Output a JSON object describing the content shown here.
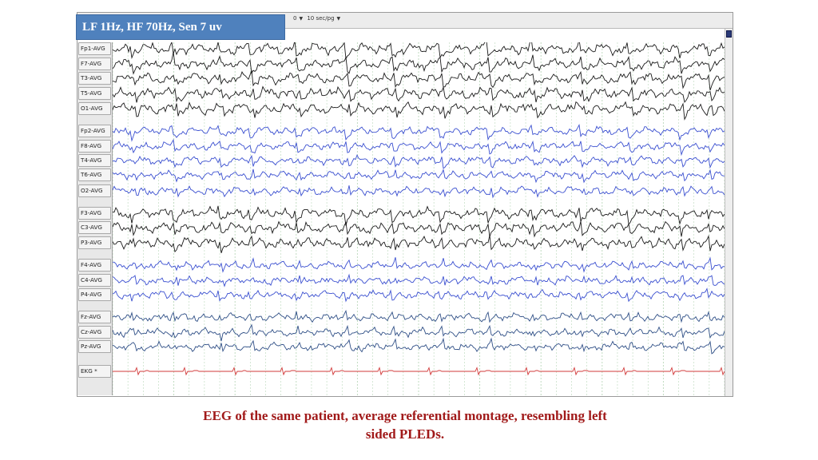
{
  "settings_badge": "LF 1Hz, HF 70Hz, Sen 7 uv",
  "toolbar": {
    "partial_value": "0",
    "timebase": "10 sec/pg"
  },
  "channels": [
    {
      "label": "Fp1-AVG",
      "group": "left"
    },
    {
      "label": "F7-AVG",
      "group": "left"
    },
    {
      "label": "T3-AVG",
      "group": "left"
    },
    {
      "label": "T5-AVG",
      "group": "left"
    },
    {
      "label": "O1-AVG",
      "group": "left"
    },
    {
      "label": "Fp2-AVG",
      "group": "right"
    },
    {
      "label": "F8-AVG",
      "group": "right"
    },
    {
      "label": "T4-AVG",
      "group": "right"
    },
    {
      "label": "T6-AVG",
      "group": "right"
    },
    {
      "label": "O2-AVG",
      "group": "right"
    },
    {
      "label": "F3-AVG",
      "group": "left"
    },
    {
      "label": "C3-AVG",
      "group": "left"
    },
    {
      "label": "P3-AVG",
      "group": "left"
    },
    {
      "label": "F4-AVG",
      "group": "right"
    },
    {
      "label": "C4-AVG",
      "group": "right"
    },
    {
      "label": "P4-AVG",
      "group": "right"
    },
    {
      "label": "Fz-AVG",
      "group": "midline"
    },
    {
      "label": "Cz-AVG",
      "group": "midline"
    },
    {
      "label": "Pz-AVG",
      "group": "midline"
    },
    {
      "label": "EKG *",
      "group": "ekg"
    }
  ],
  "colors": {
    "left": "#1a1a1a",
    "right": "#3a4fd0",
    "midline": "#2f4f86",
    "ekg": "#d23a3a",
    "grid": "#b9d7b9",
    "badge_bg": "#4f81bd",
    "caption": "#a11a1a"
  },
  "caption": {
    "line1": "EEG of the same patient, average referential  montage, resembling left",
    "line2": "sided PLEDs."
  }
}
